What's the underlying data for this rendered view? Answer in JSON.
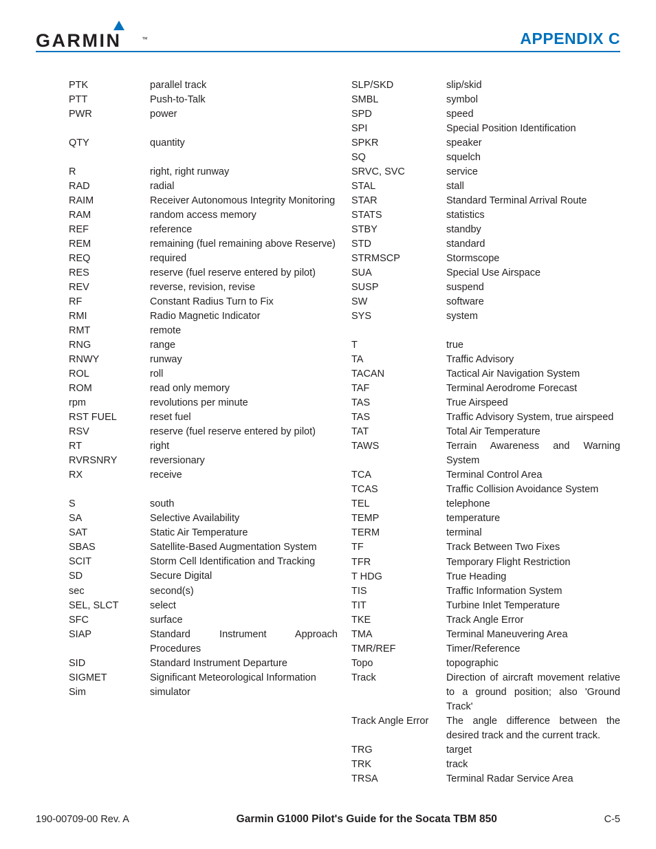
{
  "header": {
    "brand": "GARMIN",
    "section": "APPENDIX C",
    "accent_color": "#0071bc"
  },
  "footer": {
    "left": "190-00709-00  Rev. A",
    "center": "Garmin G1000 Pilot's Guide for the Socata TBM 850",
    "right": "C-5"
  },
  "col1": [
    {
      "a": "PTK",
      "d": "parallel track"
    },
    {
      "a": "PTT",
      "d": "Push-to-Talk"
    },
    {
      "a": "PWR",
      "d": "power"
    },
    {
      "spacer": true
    },
    {
      "a": "QTY",
      "d": "quantity"
    },
    {
      "spacer": true
    },
    {
      "a": "R",
      "d": "right, right runway"
    },
    {
      "a": "RAD",
      "d": "radial"
    },
    {
      "a": "RAIM",
      "d": "Receiver Autonomous Integrity Monitoring"
    },
    {
      "a": "RAM",
      "d": "random access memory"
    },
    {
      "a": "REF",
      "d": "reference"
    },
    {
      "a": "REM",
      "d": "remaining (fuel remaining above Reserve)"
    },
    {
      "a": "REQ",
      "d": "required"
    },
    {
      "a": "RES",
      "d": "reserve (fuel reserve entered by pilot)"
    },
    {
      "a": "REV",
      "d": "reverse, revision, revise"
    },
    {
      "a": "RF",
      "d": "Constant Radius Turn to Fix"
    },
    {
      "a": "RMI",
      "d": "Radio Magnetic Indicator"
    },
    {
      "a": "RMT",
      "d": "remote"
    },
    {
      "a": "RNG",
      "d": "range"
    },
    {
      "a": "RNWY",
      "d": "runway"
    },
    {
      "a": "ROL",
      "d": "roll"
    },
    {
      "a": "ROM",
      "d": "read only memory"
    },
    {
      "a": "rpm",
      "d": "revolutions per minute"
    },
    {
      "a": "RST FUEL",
      "d": "reset fuel"
    },
    {
      "a": "RSV",
      "d": "reserve (fuel reserve entered by pilot)"
    },
    {
      "a": "RT",
      "d": "right"
    },
    {
      "a": "RVRSNRY",
      "d": "reversionary"
    },
    {
      "a": "RX",
      "d": "receive"
    },
    {
      "spacer": true
    },
    {
      "a": "S",
      "d": "south"
    },
    {
      "a": "SA",
      "d": "Selective Availability"
    },
    {
      "a": "SAT",
      "d": "Static Air Temperature"
    },
    {
      "a": "SBAS",
      "d": "Satellite-Based Augmentation System"
    },
    {
      "a": "SCIT",
      "d": "Storm Cell Identification and Tracking"
    },
    {
      "a": "SD",
      "d": "Secure Digital"
    },
    {
      "a": "sec",
      "d": "second(s)"
    },
    {
      "a": "SEL, SLCT",
      "d": "select"
    },
    {
      "a": "SFC",
      "d": "surface"
    },
    {
      "a": "SIAP",
      "d": "Standard Instrument Approach Procedures"
    },
    {
      "a": "SID",
      "d": "Standard Instrument Departure"
    },
    {
      "a": "SIGMET",
      "d": "Significant Meteorological Information"
    },
    {
      "a": "Sim",
      "d": "simulator"
    }
  ],
  "col2": [
    {
      "a": "SLP/SKD",
      "d": "slip/skid"
    },
    {
      "a": "SMBL",
      "d": "symbol"
    },
    {
      "a": "SPD",
      "d": "speed"
    },
    {
      "a": "SPI",
      "d": "Special Position Identification"
    },
    {
      "a": "SPKR",
      "d": "speaker"
    },
    {
      "a": "SQ",
      "d": "squelch"
    },
    {
      "a": "SRVC, SVC",
      "d": "service"
    },
    {
      "a": "STAL",
      "d": "stall"
    },
    {
      "a": "STAR",
      "d": "Standard Terminal Arrival Route"
    },
    {
      "a": "STATS",
      "d": "statistics"
    },
    {
      "a": "STBY",
      "d": "standby"
    },
    {
      "a": "STD",
      "d": "standard"
    },
    {
      "a": "STRMSCP",
      "d": "Stormscope"
    },
    {
      "a": "SUA",
      "d": "Special Use Airspace"
    },
    {
      "a": "SUSP",
      "d": "suspend"
    },
    {
      "a": "SW",
      "d": "software"
    },
    {
      "a": "SYS",
      "d": "system"
    },
    {
      "spacer": true
    },
    {
      "a": "T",
      "d": "true"
    },
    {
      "a": "TA",
      "d": "Traffic Advisory"
    },
    {
      "a": "TACAN",
      "d": "Tactical Air Navigation System"
    },
    {
      "a": "TAF",
      "d": "Terminal Aerodrome Forecast"
    },
    {
      "a": "TAS",
      "d": "True Airspeed"
    },
    {
      "a": "TAS",
      "d": "Traffic Advisory System, true airspeed"
    },
    {
      "a": "TAT",
      "d": "Total Air Temperature"
    },
    {
      "a": "TAWS",
      "d": "Terrain Awareness and Warning System"
    },
    {
      "a": "TCA",
      "d": "Terminal Control Area"
    },
    {
      "a": "TCAS",
      "d": "Traffic Collision Avoidance System"
    },
    {
      "a": "TEL",
      "d": "telephone"
    },
    {
      "a": "TEMP",
      "d": "temperature"
    },
    {
      "a": "TERM",
      "d": "terminal"
    },
    {
      "a": "TF",
      "d": "Track Between Two Fixes"
    },
    {
      "a": "TFR",
      "d": "Temporary Flight Restriction"
    },
    {
      "a": "T HDG",
      "d": "True Heading"
    },
    {
      "a": "TIS",
      "d": "Traffic Information System"
    },
    {
      "a": "TIT",
      "d": "Turbine Inlet Temperature"
    },
    {
      "a": "TKE",
      "d": "Track Angle Error"
    },
    {
      "a": "TMA",
      "d": "Terminal Maneuvering Area"
    },
    {
      "a": "TMR/REF",
      "d": "Timer/Reference"
    },
    {
      "a": "Topo",
      "d": "topographic"
    },
    {
      "a": "Track",
      "d": "Direction of aircraft movement relative to a ground position; also 'Ground Track'"
    },
    {
      "a": "Track Angle Error",
      "d": "The angle difference between the desired track and the current track."
    },
    {
      "a": "TRG",
      "d": "target"
    },
    {
      "a": "TRK",
      "d": "track"
    },
    {
      "a": "TRSA",
      "d": "Terminal Radar Service Area"
    }
  ]
}
